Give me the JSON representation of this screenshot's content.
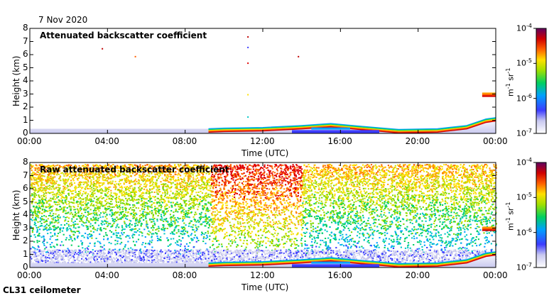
{
  "date": "7 Nov 2020",
  "footer": "CL31 ceilometer",
  "chart_data": [
    {
      "type": "heatmap",
      "title": "Attenuated backscatter coefficient",
      "xlabel": "Time (UTC)",
      "ylabel": "Height (km)",
      "xlim": [
        0,
        24
      ],
      "ylim": [
        0,
        8
      ],
      "xticks": [
        "00:00",
        "04:00",
        "08:00",
        "12:00",
        "16:00",
        "20:00",
        "00:00"
      ],
      "yticks": [
        "0",
        "1",
        "2",
        "3",
        "4",
        "5",
        "6",
        "7",
        "8"
      ],
      "colorbar": {
        "scale": "log",
        "range": [
          1e-07,
          0.0001
        ],
        "ticks": [
          "10-7",
          "10-6",
          "10-5",
          "10-4"
        ],
        "unit": "m-1 sr-1"
      },
      "boundary_layer_top_km": [
        [
          0,
          0.35
        ],
        [
          9.2,
          0.35
        ],
        [
          10,
          0.4
        ],
        [
          12,
          0.45
        ],
        [
          14,
          0.6
        ],
        [
          15.5,
          0.75
        ],
        [
          17,
          0.55
        ],
        [
          19,
          0.3
        ],
        [
          21,
          0.35
        ],
        [
          22.5,
          0.6
        ],
        [
          23.5,
          1.1
        ],
        [
          24,
          1.2
        ]
      ],
      "cloud_layers": [
        {
          "t_start": 23.3,
          "t_end": 24,
          "height_km": 2.95
        }
      ]
    },
    {
      "type": "heatmap",
      "title": "Raw attenuated backscatter coefficient",
      "xlabel": "Time (UTC)",
      "ylabel": "Height (km)",
      "xlim": [
        0,
        24
      ],
      "ylim": [
        0,
        8
      ],
      "xticks": [
        "00:00",
        "04:00",
        "08:00",
        "12:00",
        "16:00",
        "20:00",
        "00:00"
      ],
      "yticks": [
        "0",
        "1",
        "2",
        "3",
        "4",
        "5",
        "6",
        "7",
        "8"
      ],
      "colorbar": {
        "scale": "log",
        "range": [
          1e-07,
          0.0001
        ],
        "ticks": [
          "10-7",
          "10-6",
          "10-5",
          "10-4"
        ],
        "unit": "m-1 sr-1"
      },
      "boundary_layer_top_km": [
        [
          0,
          0.35
        ],
        [
          9.2,
          0.35
        ],
        [
          10,
          0.4
        ],
        [
          12,
          0.45
        ],
        [
          14,
          0.6
        ],
        [
          15.5,
          0.75
        ],
        [
          17,
          0.55
        ],
        [
          19,
          0.3
        ],
        [
          21,
          0.35
        ],
        [
          22.5,
          0.6
        ],
        [
          23.5,
          1.1
        ],
        [
          24,
          1.2
        ]
      ],
      "cloud_layers": [
        {
          "t_start": 23.3,
          "t_end": 24,
          "height_km": 2.95
        }
      ]
    }
  ]
}
